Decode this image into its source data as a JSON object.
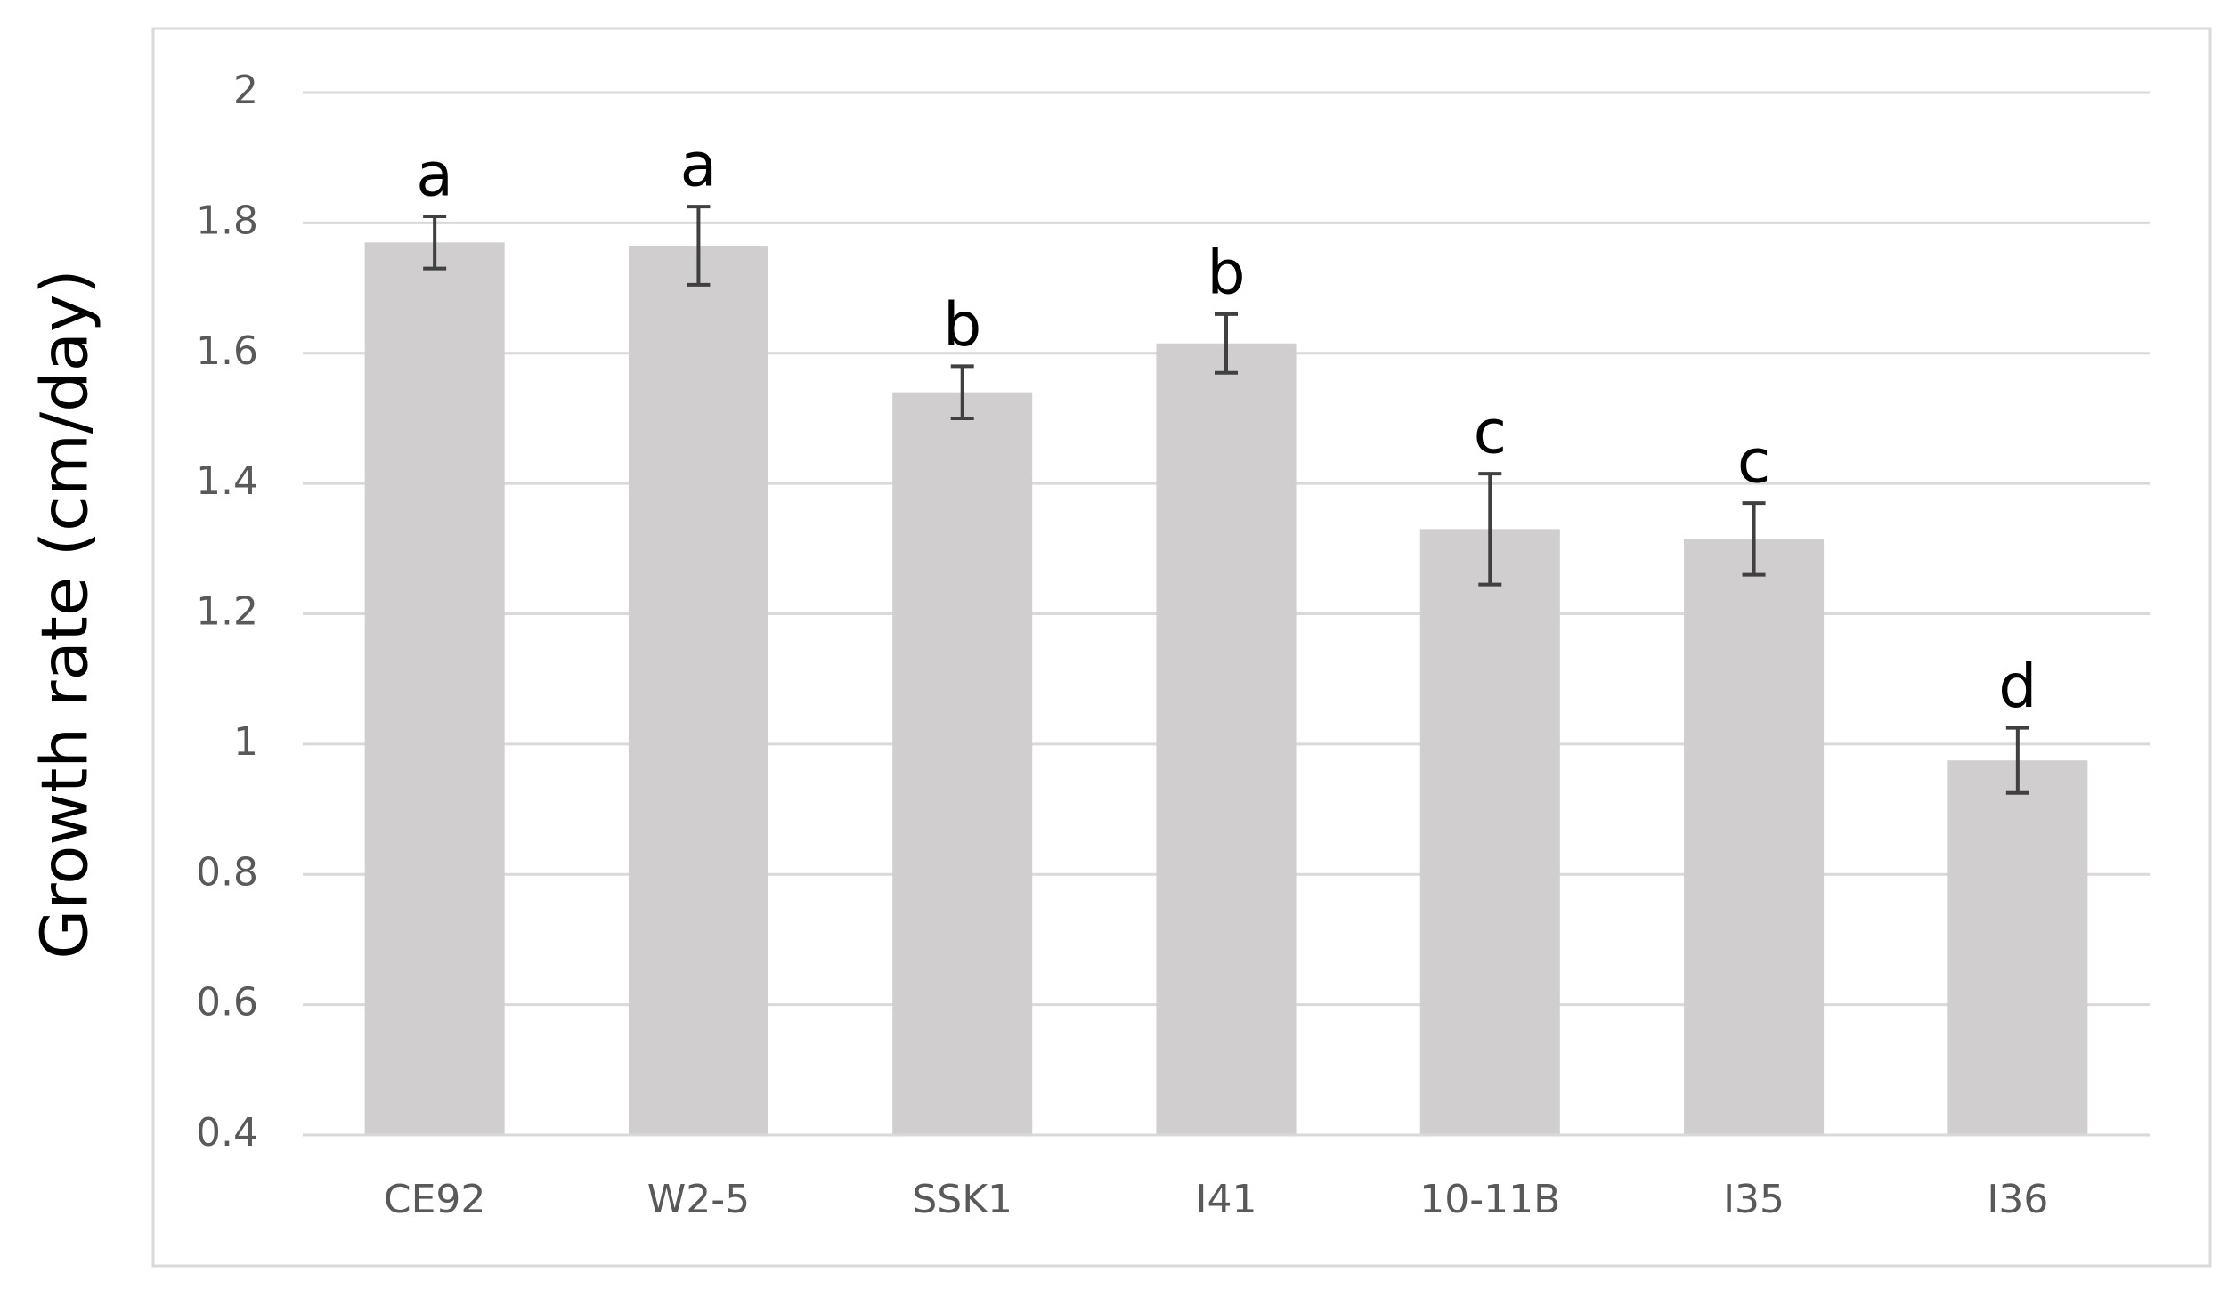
{
  "chart_data": {
    "type": "bar",
    "ylabel": "Growth rate (cm/day)",
    "categories": [
      "CE92",
      "W2-5",
      "SSK1",
      "I41",
      "10-11B",
      "I35",
      "I36"
    ],
    "values": [
      1.77,
      1.765,
      1.54,
      1.615,
      1.33,
      1.315,
      0.975
    ],
    "errors": [
      0.04,
      0.06,
      0.04,
      0.045,
      0.085,
      0.055,
      0.05
    ],
    "annotations": [
      "a",
      "a",
      "b",
      "b",
      "c",
      "c",
      "d"
    ],
    "color": "#d0cece",
    "error_color": "#404040",
    "ylim": [
      0.4,
      2
    ],
    "yticks": [
      0.4,
      0.6,
      0.8,
      1,
      1.2,
      1.4,
      1.6,
      1.8,
      2
    ],
    "grid": true
  }
}
